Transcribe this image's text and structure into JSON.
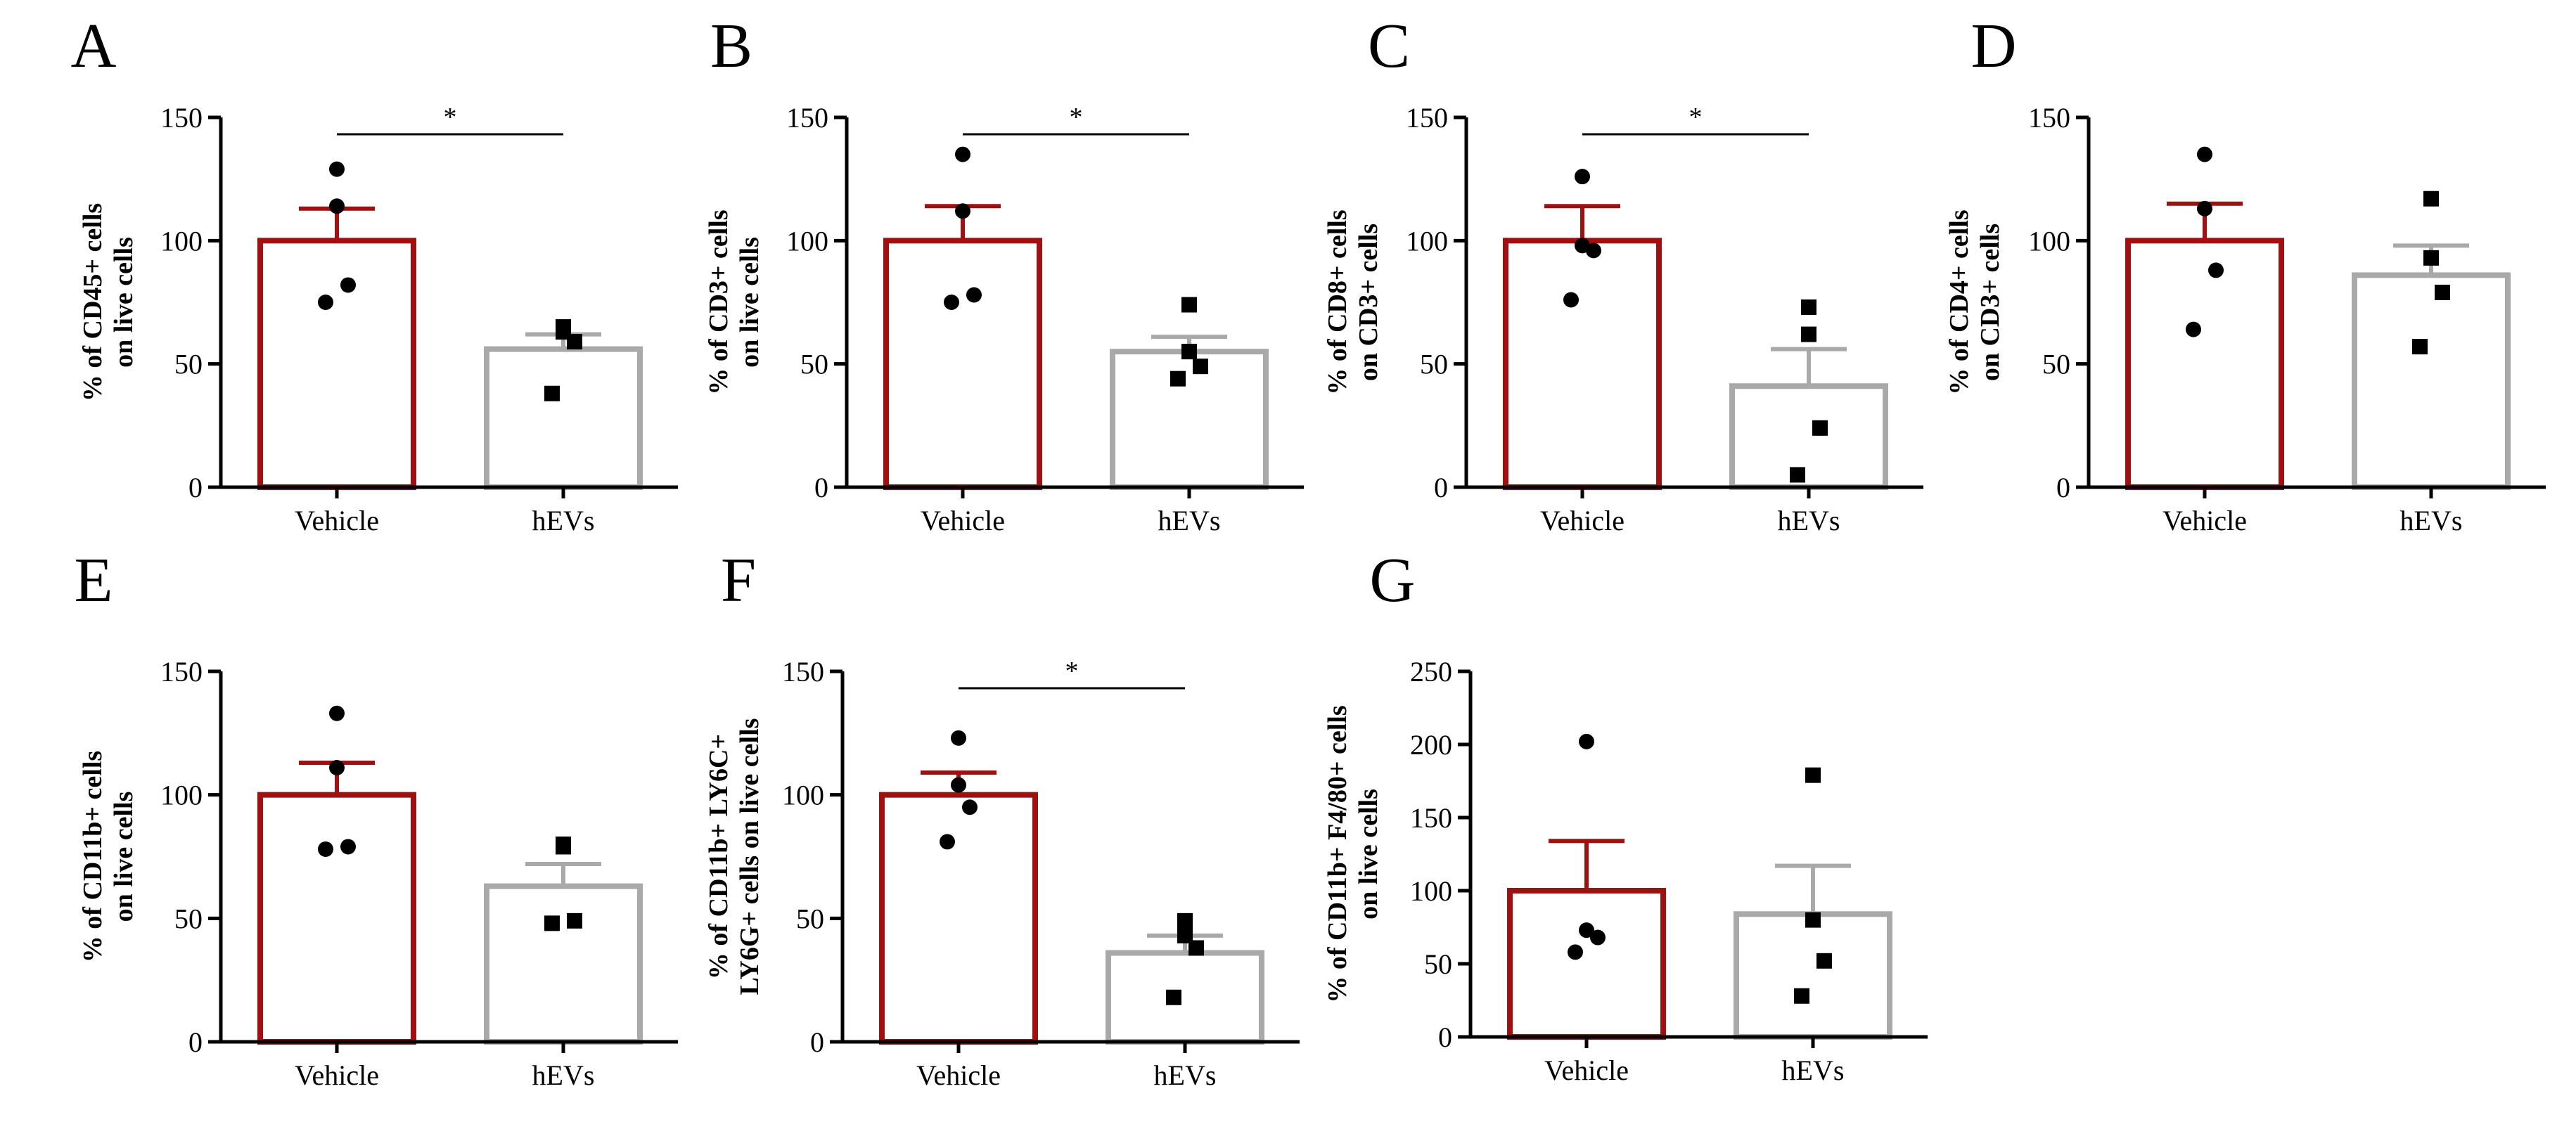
{
  "colors": {
    "vehicle": "#a01010",
    "hevs": "#a9a9a9",
    "axis": "#000000"
  },
  "chart_data": [
    {
      "type": "bar",
      "panel": "A",
      "ylabel": [
        "% of CD45+ cells",
        "on live cells"
      ],
      "ylim": [
        0,
        150
      ],
      "yticks": [
        0,
        50,
        100,
        150
      ],
      "categories": [
        "Vehicle",
        "hEVs"
      ],
      "bars": [
        {
          "mean": 100,
          "sem": 13,
          "points": [
            129,
            114,
            82,
            75
          ]
        },
        {
          "mean": 56,
          "sem": 6,
          "points": [
            63,
            65,
            59,
            38
          ]
        }
      ],
      "significance": "*"
    },
    {
      "type": "bar",
      "panel": "B",
      "ylabel": [
        "% of CD3+ cells",
        "on live cells"
      ],
      "ylim": [
        0,
        150
      ],
      "yticks": [
        0,
        50,
        100,
        150
      ],
      "categories": [
        "Vehicle",
        "hEVs"
      ],
      "bars": [
        {
          "mean": 100,
          "sem": 14,
          "points": [
            135,
            112,
            78,
            75
          ]
        },
        {
          "mean": 55,
          "sem": 6,
          "points": [
            74,
            55,
            49,
            44
          ]
        }
      ],
      "significance": "*"
    },
    {
      "type": "bar",
      "panel": "C",
      "ylabel": [
        "% of CD8+ cells",
        "on CD3+ cells"
      ],
      "ylim": [
        0,
        150
      ],
      "yticks": [
        0,
        50,
        100,
        150
      ],
      "categories": [
        "Vehicle",
        "hEVs"
      ],
      "bars": [
        {
          "mean": 100,
          "sem": 14,
          "points": [
            126,
            98,
            96,
            76
          ]
        },
        {
          "mean": 41,
          "sem": 15,
          "points": [
            73,
            62,
            24,
            5
          ]
        }
      ],
      "significance": "*"
    },
    {
      "type": "bar",
      "panel": "D",
      "ylabel": [
        "% of CD4+ cells",
        "on CD3+ cells"
      ],
      "ylim": [
        0,
        150
      ],
      "yticks": [
        0,
        50,
        100,
        150
      ],
      "categories": [
        "Vehicle",
        "hEVs"
      ],
      "bars": [
        {
          "mean": 100,
          "sem": 15,
          "points": [
            135,
            113,
            88,
            64
          ]
        },
        {
          "mean": 86,
          "sem": 12,
          "points": [
            117,
            93,
            79,
            57
          ]
        }
      ],
      "significance": ""
    },
    {
      "type": "bar",
      "panel": "E",
      "ylabel": [
        "% of CD11b+ cells",
        "on live cells"
      ],
      "ylim": [
        0,
        150
      ],
      "yticks": [
        0,
        50,
        100,
        150
      ],
      "categories": [
        "Vehicle",
        "hEVs"
      ],
      "bars": [
        {
          "mean": 100,
          "sem": 13,
          "points": [
            133,
            111,
            79,
            78
          ]
        },
        {
          "mean": 63,
          "sem": 9,
          "points": [
            80,
            79,
            49,
            48
          ]
        }
      ],
      "significance": ""
    },
    {
      "type": "bar",
      "panel": "F",
      "ylabel": [
        "% of CD11b+ LY6C+",
        "LY6G+ cells on live cells"
      ],
      "ylim": [
        0,
        150
      ],
      "yticks": [
        0,
        50,
        100,
        150
      ],
      "categories": [
        "Vehicle",
        "hEVs"
      ],
      "bars": [
        {
          "mean": 100,
          "sem": 9,
          "points": [
            123,
            104,
            95,
            81
          ]
        },
        {
          "mean": 36,
          "sem": 7,
          "points": [
            49,
            43,
            38,
            18
          ]
        }
      ],
      "significance": "*"
    },
    {
      "type": "bar",
      "panel": "G",
      "ylabel": [
        "% of CD11b+ F4/80+ cells",
        "on live cells"
      ],
      "ylim": [
        0,
        250
      ],
      "yticks": [
        0,
        50,
        100,
        150,
        200,
        250
      ],
      "categories": [
        "Vehicle",
        "hEVs"
      ],
      "bars": [
        {
          "mean": 100,
          "sem": 34,
          "points": [
            202,
            73,
            68,
            58
          ]
        },
        {
          "mean": 84,
          "sem": 33,
          "points": [
            179,
            80,
            52,
            28
          ]
        }
      ],
      "significance": ""
    }
  ]
}
